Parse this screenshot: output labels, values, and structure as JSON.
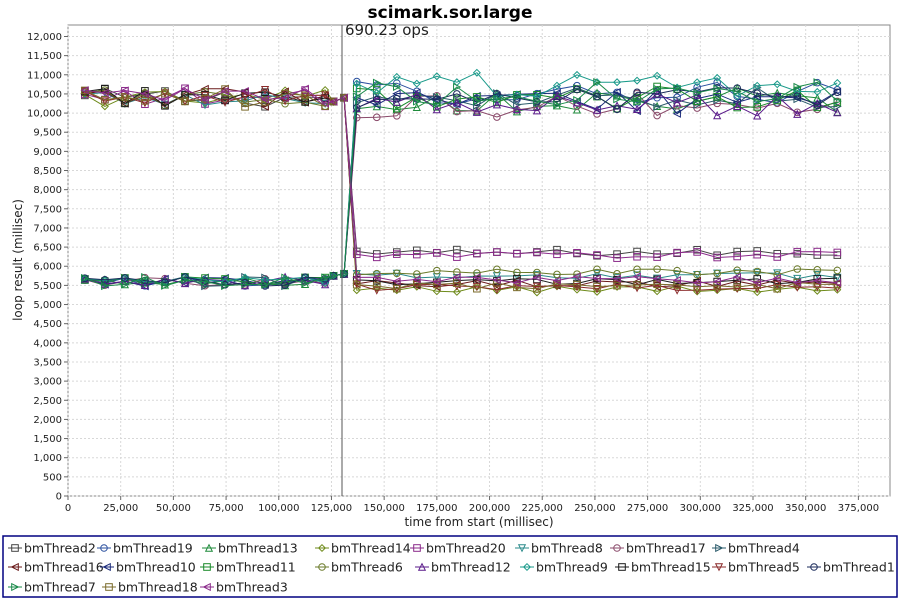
{
  "chart_data": {
    "type": "line",
    "title": "scimark.sor.large",
    "xlabel": "time from start (millisec)",
    "ylabel": "loop result (millisec)",
    "xlim": [
      0,
      390000
    ],
    "ylim": [
      0,
      12300
    ],
    "x_ticks": [
      0,
      25000,
      50000,
      75000,
      100000,
      125000,
      150000,
      175000,
      200000,
      225000,
      250000,
      275000,
      300000,
      325000,
      350000,
      375000
    ],
    "x_tick_labels": [
      "0",
      "25,000",
      "50,000",
      "75,000",
      "100,000",
      "125,000",
      "150,000",
      "175,000",
      "200,000",
      "225,000",
      "250,000",
      "275,000",
      "300,000",
      "325,000",
      "350,000",
      "375,000"
    ],
    "y_ticks": [
      0,
      500,
      1000,
      1500,
      2000,
      2500,
      3000,
      3500,
      4000,
      4500,
      5000,
      5500,
      6000,
      6500,
      7000,
      7500,
      8000,
      8500,
      9000,
      9500,
      10000,
      10500,
      11000,
      11500,
      12000
    ],
    "y_tick_labels": [
      "0",
      "500",
      "1,000",
      "1,500",
      "2,000",
      "2,500",
      "3,000",
      "3,500",
      "4,000",
      "4,500",
      "5,000",
      "5,500",
      "6,000",
      "6,500",
      "7,000",
      "7,500",
      "8,000",
      "8,500",
      "9,000",
      "9,500",
      "10,000",
      "10,500",
      "11,000",
      "11,500",
      "12,000"
    ],
    "grid": true,
    "legend_position": "bottom",
    "annotation": {
      "x": 130000,
      "text": "690.23 ops"
    },
    "series": [
      {
        "name": "bmThread2",
        "marker": "square",
        "color": "#444444",
        "group": "low",
        "level": 6350,
        "after_color_level": 6350
      },
      {
        "name": "bmThread19",
        "marker": "circle",
        "color": "#2a4f9e",
        "group": "high",
        "level": 10550
      },
      {
        "name": "bmThread13",
        "marker": "triangle-up",
        "color": "#1d8a3a",
        "group": "high",
        "level": 10350
      },
      {
        "name": "bmThread14",
        "marker": "diamond",
        "color": "#6e8a1a",
        "group": "low",
        "level": 5400
      },
      {
        "name": "bmThread20",
        "marker": "square",
        "color": "#8a2a8a",
        "group": "low",
        "level": 6300
      },
      {
        "name": "bmThread8",
        "marker": "triangle-down",
        "color": "#2a8a8a",
        "group": "low",
        "level": 5750
      },
      {
        "name": "bmThread17",
        "marker": "circle",
        "color": "#8a4a6a",
        "group": "high",
        "level": 10200
      },
      {
        "name": "bmThread4",
        "marker": "triangle-right",
        "color": "#2a5a6a",
        "group": "high",
        "level": 10450
      },
      {
        "name": "bmThread16",
        "marker": "triangle-left",
        "color": "#6a1a1a",
        "group": "low",
        "level": 5550
      },
      {
        "name": "bmThread10",
        "marker": "triangle-left",
        "color": "#1a2a7a",
        "group": "high",
        "level": 10300
      },
      {
        "name": "bmThread11",
        "marker": "square",
        "color": "#1a8a2a",
        "group": "high",
        "level": 10400
      },
      {
        "name": "bmThread6",
        "marker": "circle",
        "color": "#6a7a2a",
        "group": "low",
        "level": 5850
      },
      {
        "name": "bmThread12",
        "marker": "triangle-up",
        "color": "#5a1a8a",
        "group": "high",
        "level": 10250
      },
      {
        "name": "bmThread9",
        "marker": "diamond",
        "color": "#1a9a8a",
        "group": "high",
        "level": 10750
      },
      {
        "name": "bmThread15",
        "marker": "square",
        "color": "#1a1a1a",
        "group": "low",
        "level": 5600
      },
      {
        "name": "bmThread5",
        "marker": "triangle-down",
        "color": "#8a2a2a",
        "group": "low",
        "level": 5450
      },
      {
        "name": "bmThread1",
        "marker": "circle",
        "color": "#1a2a5a",
        "group": "high",
        "level": 10350
      },
      {
        "name": "bmThread7",
        "marker": "triangle-right",
        "color": "#1a8a4a",
        "group": "high",
        "level": 10500
      },
      {
        "name": "bmThread18",
        "marker": "square",
        "color": "#7a6a2a",
        "group": "low",
        "level": 5500
      },
      {
        "name": "bmThread3",
        "marker": "triangle-left",
        "color": "#8a2a8a",
        "group": "low",
        "level": 5650
      }
    ]
  }
}
